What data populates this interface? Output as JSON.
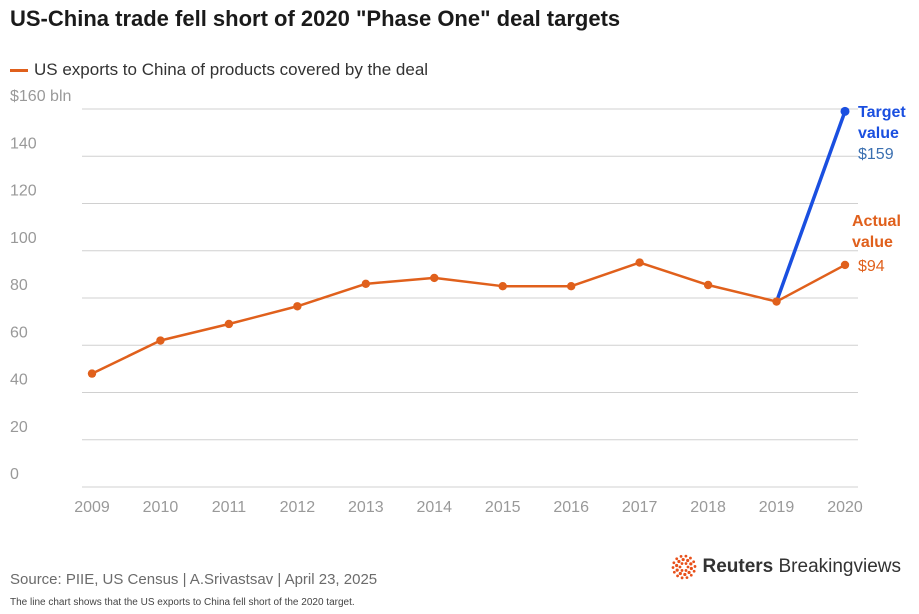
{
  "header": {
    "title": "US-China trade fell short of 2020 \"Phase One\" deal targets"
  },
  "colors": {
    "actual": "#e0601c",
    "target": "#1a4fe0",
    "target_value_text": "#3a6fb0",
    "grid": "#d0d0d0",
    "axis_text": "#999999"
  },
  "chart_data": {
    "type": "line",
    "title": "US-China trade fell short of 2020 \"Phase One\" deal targets",
    "xlabel": "",
    "ylabel": "",
    "ylim": [
      0,
      160
    ],
    "y_ticks": [
      0,
      20,
      40,
      60,
      80,
      100,
      120,
      140,
      160
    ],
    "y_tick_labels": [
      "0",
      "20",
      "40",
      "60",
      "80",
      "100",
      "120",
      "140",
      "$160 bln"
    ],
    "grid": true,
    "x": [
      "2009",
      "2010",
      "2011",
      "2012",
      "2013",
      "2014",
      "2015",
      "2016",
      "2017",
      "2018",
      "2019",
      "2020"
    ],
    "series": [
      {
        "name": "US exports to China of products covered by the deal",
        "values": [
          48,
          62,
          69,
          76.5,
          86,
          88.5,
          85,
          85,
          95,
          85.5,
          78.5,
          94
        ]
      },
      {
        "name": "",
        "x": [
          "2019",
          "2020"
        ],
        "values": [
          78.5,
          159
        ]
      }
    ],
    "annotations": {
      "target_label_1": "Target",
      "target_label_2": "value",
      "target_value": "$159",
      "actual_label_1": "Actual",
      "actual_label_2": "value",
      "actual_value": "$94"
    }
  },
  "footer": {
    "source": "Source: PIIE, US Census | A.Srivastsav | April 23, 2025",
    "note": "The line chart shows that the US exports to China fell short of the 2020 target.",
    "logo_bold": "Reuters",
    "logo_regular": " Breakingviews"
  }
}
